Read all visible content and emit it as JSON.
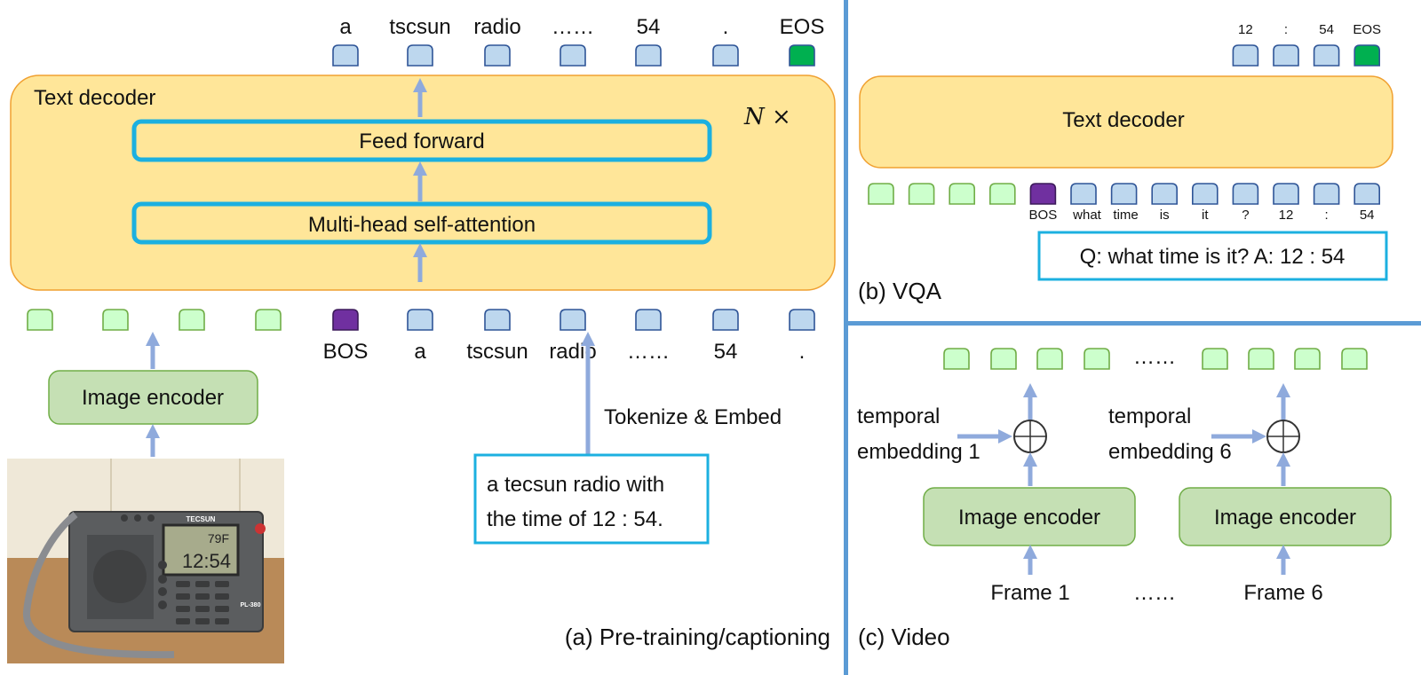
{
  "colors": {
    "decoder_fill": "#ffe699",
    "decoder_stroke": "#f0a030",
    "encoder_fill": "#c5e0b4",
    "encoder_stroke": "#70ad47",
    "text_token": "#bdd7ee",
    "image_token": "#ccffcc",
    "bos_token": "#7030a0",
    "eos_token": "#00b050",
    "arrow": "#8faadc",
    "highlight_box": "#1cb0e0",
    "divider": "#5b9bd5"
  },
  "panel_a": {
    "caption": "(a) Pre-training/captioning",
    "output_tokens": [
      "a",
      "tscsun",
      "radio",
      "……",
      "54",
      ".",
      "EOS"
    ],
    "decoder_label": "Text decoder",
    "repeat_label": "N ×",
    "feed_forward": "Feed forward",
    "attention": "Multi-head self-attention",
    "input_tokens": [
      "BOS",
      "a",
      "tscsun",
      "radio",
      "……",
      "54",
      "."
    ],
    "image_encoder": "Image encoder",
    "tokenize_label": "Tokenize & Embed",
    "caption_text": [
      "a tecsun radio with",
      "the time of 12 : 54."
    ],
    "photo": {
      "brand": "TECSUN",
      "display_temp": "79F",
      "display_time": "12:54",
      "model": "PL-380"
    }
  },
  "panel_b": {
    "caption": "(b) VQA",
    "output_tokens": [
      "12",
      ":",
      "54",
      "EOS"
    ],
    "decoder_label": "Text decoder",
    "input_tokens": [
      "BOS",
      "what",
      "time",
      "is",
      "it",
      "?",
      "12",
      ":",
      "54"
    ],
    "qa_text": "Q: what time is it? A: 12 : 54"
  },
  "panel_c": {
    "caption": "(c) Video",
    "ellipsis": "……",
    "temporal_1": [
      "temporal",
      "embedding 1"
    ],
    "temporal_6": [
      "temporal",
      "embedding 6"
    ],
    "image_encoder": "Image encoder",
    "frame_1": "Frame 1",
    "frame_6": "Frame 6"
  }
}
